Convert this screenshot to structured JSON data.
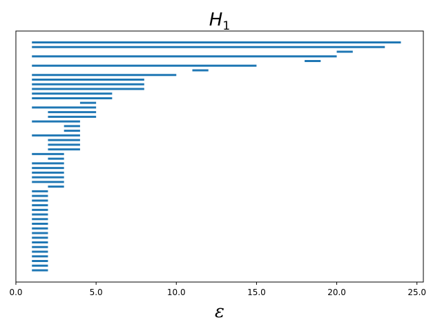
{
  "chart_data": {
    "type": "barcode",
    "title_main": "H",
    "title_sub": "1",
    "xlabel": "ε",
    "ylabel": "",
    "xlim": [
      0,
      25.4
    ],
    "xticks": [
      0,
      5,
      10,
      15,
      20,
      25
    ],
    "xtick_labels": [
      "0.0",
      "5.0",
      "10.0",
      "15.0",
      "20.0",
      "25.0"
    ],
    "yticks_visible": false,
    "grid": false,
    "color": "#1f77b4",
    "intervals": [
      [
        1,
        24
      ],
      [
        1,
        23
      ],
      [
        20,
        21
      ],
      [
        1,
        20
      ],
      [
        18,
        19
      ],
      [
        1,
        15
      ],
      [
        11,
        12
      ],
      [
        1,
        10
      ],
      [
        1,
        8
      ],
      [
        1,
        8
      ],
      [
        1,
        8
      ],
      [
        1,
        6
      ],
      [
        1,
        6
      ],
      [
        4,
        5
      ],
      [
        1,
        5
      ],
      [
        2,
        5
      ],
      [
        2,
        5
      ],
      [
        1,
        4
      ],
      [
        3,
        4
      ],
      [
        3,
        4
      ],
      [
        1,
        4
      ],
      [
        2,
        4
      ],
      [
        2,
        4
      ],
      [
        2,
        4
      ],
      [
        1,
        3
      ],
      [
        2,
        3
      ],
      [
        1,
        3
      ],
      [
        1,
        3
      ],
      [
        1,
        3
      ],
      [
        1,
        3
      ],
      [
        1,
        3
      ],
      [
        2,
        3
      ],
      [
        1,
        2
      ],
      [
        1,
        2
      ],
      [
        1,
        2
      ],
      [
        1,
        2
      ],
      [
        1,
        2
      ],
      [
        1,
        2
      ],
      [
        1,
        2
      ],
      [
        1,
        2
      ],
      [
        1,
        2
      ],
      [
        1,
        2
      ],
      [
        1,
        2
      ],
      [
        1,
        2
      ],
      [
        1,
        2
      ],
      [
        1,
        2
      ],
      [
        1,
        2
      ],
      [
        1,
        2
      ],
      [
        1,
        2
      ],
      [
        1,
        2
      ]
    ]
  }
}
